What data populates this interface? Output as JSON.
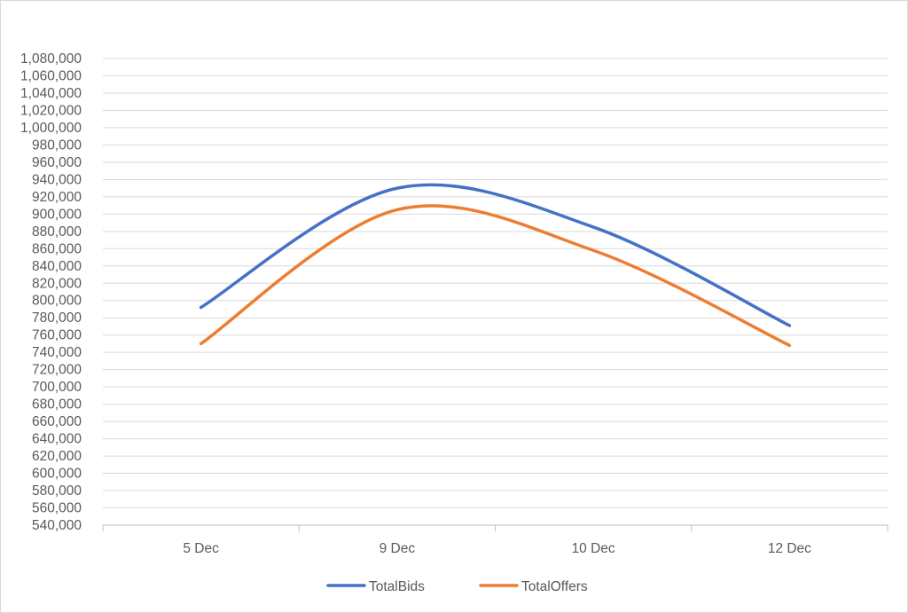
{
  "chart_data": {
    "type": "line",
    "smooth": true,
    "categories": [
      "5 Dec",
      "9 Dec",
      "10 Dec",
      "12 Dec"
    ],
    "series": [
      {
        "name": "TotalBids",
        "color": "#4472c4",
        "values": [
          792000,
          930000,
          885000,
          771000
        ]
      },
      {
        "name": "TotalOffers",
        "color": "#ed7d31",
        "values": [
          750000,
          905000,
          858000,
          748000
        ]
      }
    ],
    "ylim": [
      540000,
      1080000
    ],
    "ytick_step": 20000,
    "grid": true,
    "legend_position": "bottom",
    "gridline_color": "#d9d9d9",
    "axis_color": "#bfbfbf",
    "label_color": "#595959"
  }
}
